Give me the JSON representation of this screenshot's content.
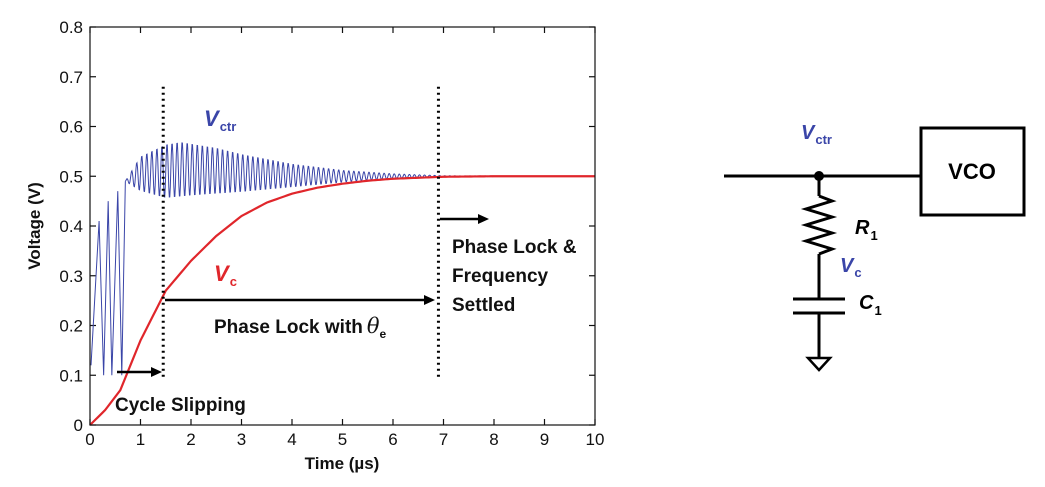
{
  "chart_data": {
    "type": "line",
    "xlabel": "Time (µs)",
    "ylabel": "Voltage (V)",
    "xlim": [
      0,
      10
    ],
    "ylim": [
      0,
      0.8
    ],
    "x_ticks": [
      "0",
      "1",
      "2",
      "3",
      "4",
      "5",
      "6",
      "7",
      "8",
      "9",
      "10"
    ],
    "y_ticks": [
      "0",
      "0.1",
      "0.2",
      "0.3",
      "0.4",
      "0.5",
      "0.6",
      "0.7",
      "0.8"
    ],
    "series": [
      {
        "name": "Vctr",
        "label_main": "V",
        "label_sub": "ctr",
        "color": "#3a45a8",
        "cycle_slip_peaks": [
          {
            "x": 0.18,
            "y": 0.41
          },
          {
            "x": 0.36,
            "y": 0.45
          },
          {
            "x": 0.55,
            "y": 0.47
          }
        ],
        "envelope_upper": [
          {
            "x": 0.7,
            "y": 0.49
          },
          {
            "x": 1.0,
            "y": 0.54
          },
          {
            "x": 1.5,
            "y": 0.565
          },
          {
            "x": 1.8,
            "y": 0.57
          },
          {
            "x": 2.5,
            "y": 0.558
          },
          {
            "x": 3.0,
            "y": 0.545
          },
          {
            "x": 4.0,
            "y": 0.525
          },
          {
            "x": 5.0,
            "y": 0.512
          },
          {
            "x": 6.0,
            "y": 0.505
          },
          {
            "x": 7.0,
            "y": 0.501
          },
          {
            "x": 10.0,
            "y": 0.5
          }
        ],
        "envelope_lower": [
          {
            "x": 0.7,
            "y": 0.49
          },
          {
            "x": 1.0,
            "y": 0.47
          },
          {
            "x": 1.5,
            "y": 0.455
          },
          {
            "x": 2.0,
            "y": 0.46
          },
          {
            "x": 3.0,
            "y": 0.468
          },
          {
            "x": 4.0,
            "y": 0.478
          },
          {
            "x": 5.0,
            "y": 0.488
          },
          {
            "x": 6.0,
            "y": 0.495
          },
          {
            "x": 7.0,
            "y": 0.499
          },
          {
            "x": 10.0,
            "y": 0.5
          }
        ]
      },
      {
        "name": "Vc",
        "label_main": "V",
        "label_sub": "c",
        "color": "#e0262b",
        "points": [
          {
            "x": 0,
            "y": 0
          },
          {
            "x": 0.3,
            "y": 0.03
          },
          {
            "x": 0.6,
            "y": 0.07
          },
          {
            "x": 1.0,
            "y": 0.17
          },
          {
            "x": 1.5,
            "y": 0.27
          },
          {
            "x": 2.0,
            "y": 0.33
          },
          {
            "x": 2.5,
            "y": 0.38
          },
          {
            "x": 3.0,
            "y": 0.42
          },
          {
            "x": 3.5,
            "y": 0.447
          },
          {
            "x": 4.0,
            "y": 0.465
          },
          {
            "x": 4.5,
            "y": 0.477
          },
          {
            "x": 5.0,
            "y": 0.485
          },
          {
            "x": 5.5,
            "y": 0.491
          },
          {
            "x": 6.0,
            "y": 0.495
          },
          {
            "x": 6.5,
            "y": 0.497
          },
          {
            "x": 7.0,
            "y": 0.499
          },
          {
            "x": 8.0,
            "y": 0.5
          },
          {
            "x": 10.0,
            "y": 0.5
          }
        ]
      }
    ],
    "markers": [
      {
        "name": "slip-end",
        "x": 1.45
      },
      {
        "name": "settled",
        "x": 6.9
      }
    ],
    "annotations": {
      "cycle_slipping": "Cycle Slipping",
      "phase_lock_with": "Phase Lock with",
      "theta_main": "θ",
      "theta_sub": "e",
      "settled_lines": [
        "Phase Lock &",
        "Frequency",
        "Settled"
      ]
    }
  },
  "circuit": {
    "vctr_main": "V",
    "vctr_sub": "ctr",
    "vco": "VCO",
    "r_main": "R",
    "r_sub": "1",
    "vc_main": "V",
    "vc_sub": "c",
    "c_main": "C",
    "c_sub": "1",
    "node_label_color": "#3a45a8"
  }
}
